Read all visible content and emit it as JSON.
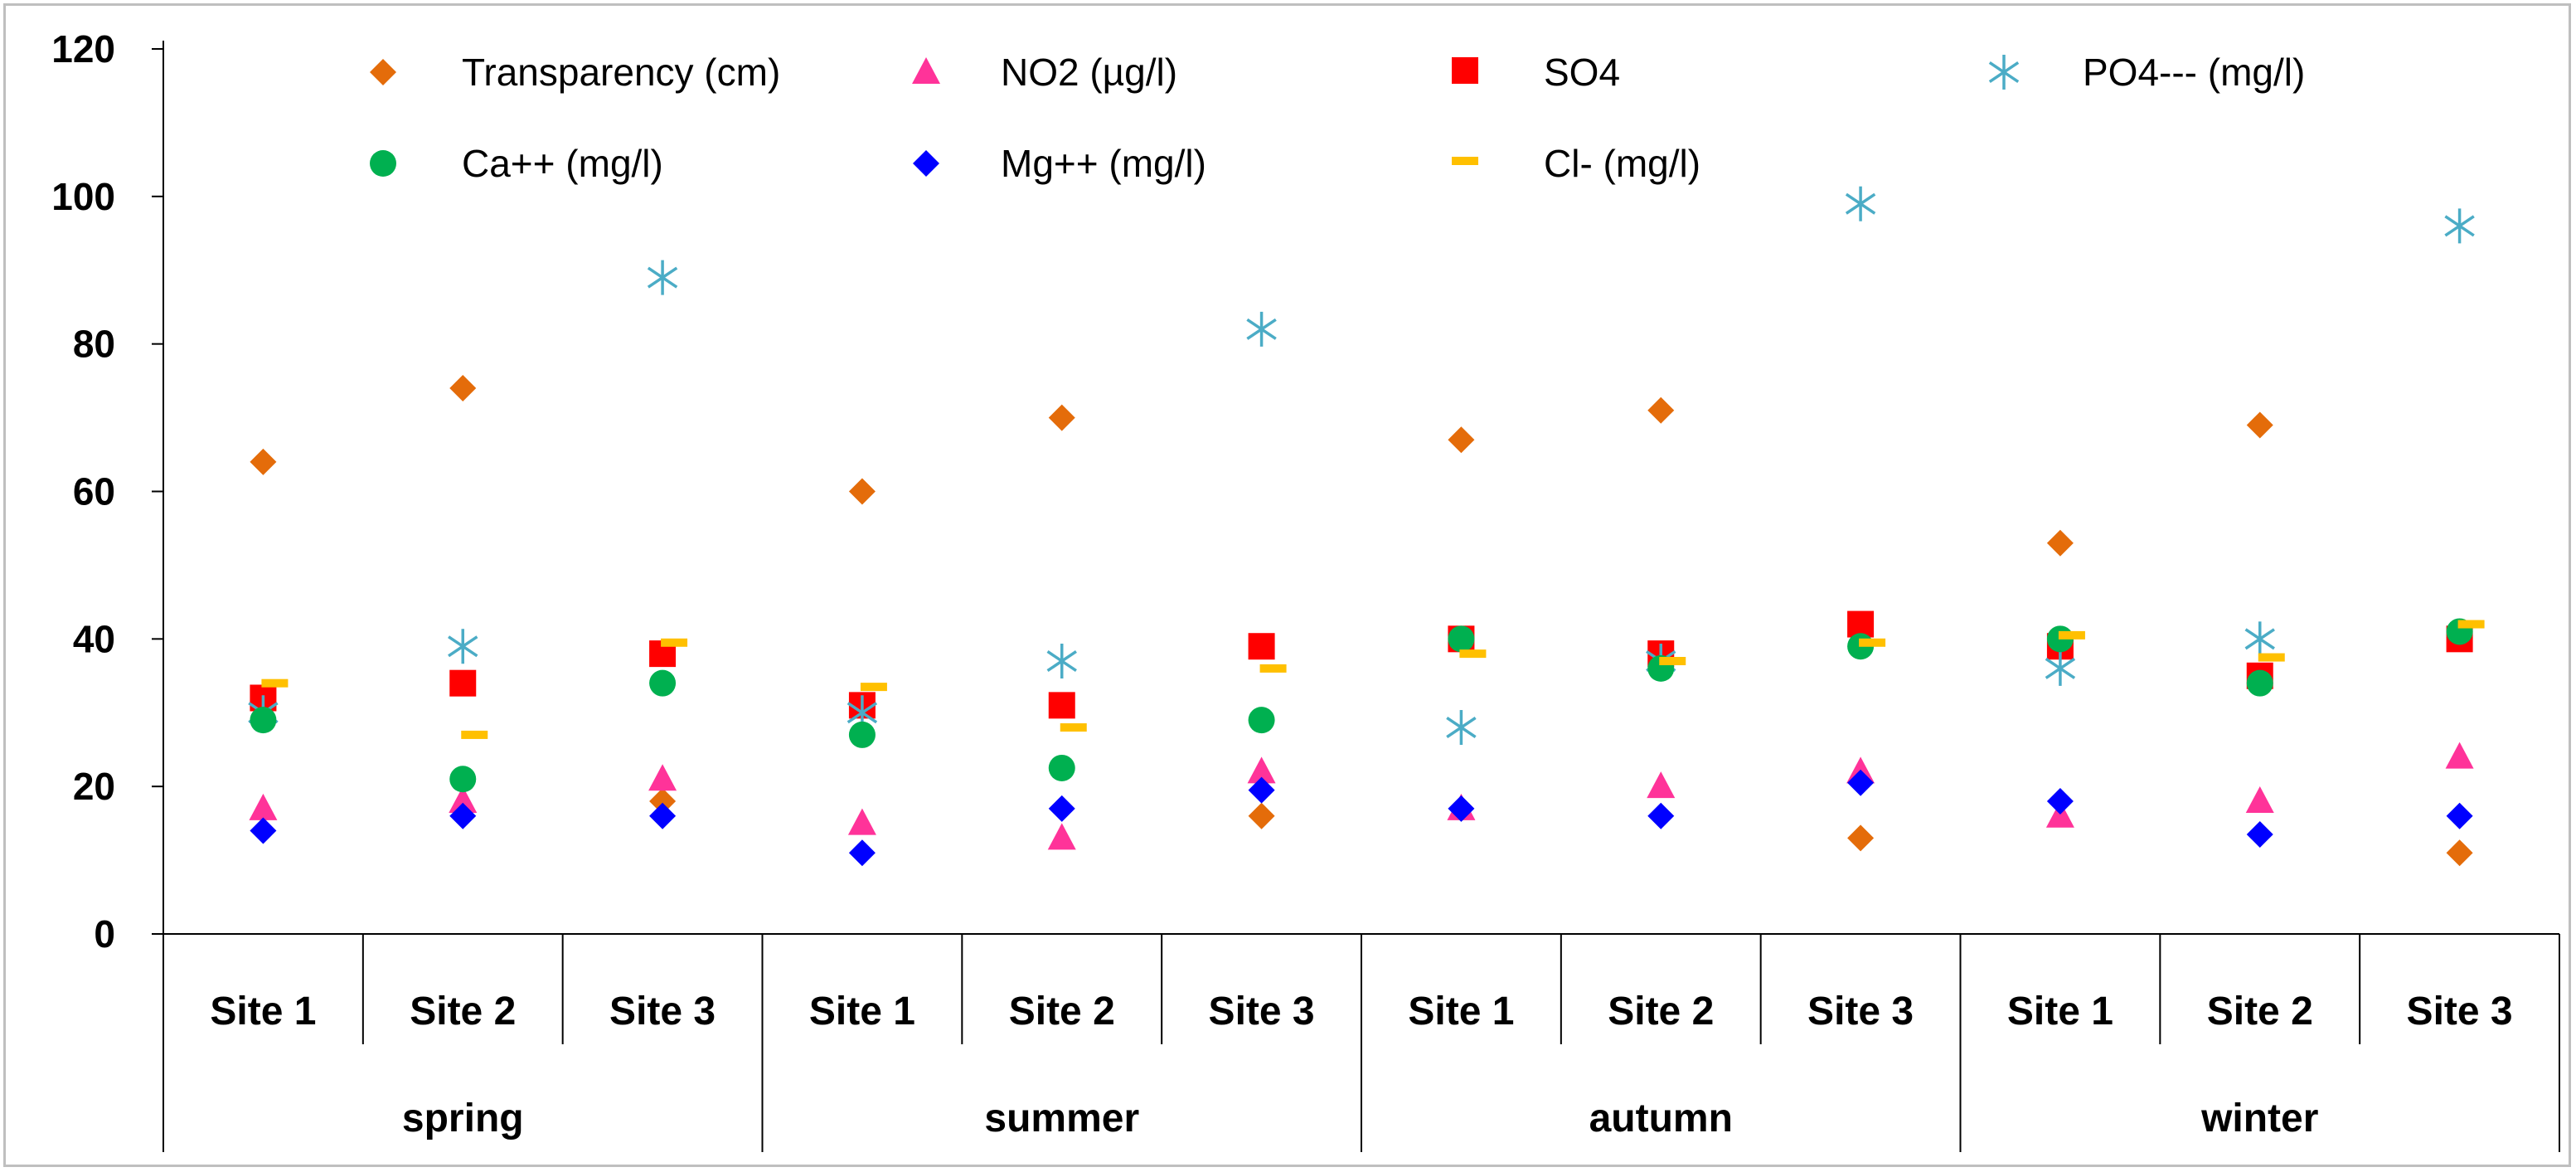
{
  "chart_data": {
    "type": "scatter",
    "title": "",
    "xlabel": "",
    "ylabel": "",
    "ylim": [
      0,
      120
    ],
    "y_ticks": [
      "0",
      "20",
      "40",
      "60",
      "80",
      "100",
      "120"
    ],
    "categories": [
      "Site 1",
      "Site 2",
      "Site 3",
      "Site 1",
      "Site 2",
      "Site 3",
      "Site 1",
      "Site 2",
      "Site 3",
      "Site 1",
      "Site 2",
      "Site 3"
    ],
    "groups": [
      {
        "name": "spring",
        "span": 3
      },
      {
        "name": "summer",
        "span": 3
      },
      {
        "name": "autumn",
        "span": 3
      },
      {
        "name": "winter",
        "span": 3
      }
    ],
    "legend_position": "top",
    "series": [
      {
        "name": "Transparency (cm)",
        "marker": "diamond",
        "color": "#E46C0A",
        "values": [
          64,
          74,
          18,
          60,
          70,
          16,
          67,
          71,
          13,
          53,
          69,
          11
        ]
      },
      {
        "name": "NO2 (µg/l)",
        "marker": "triangle",
        "color": "#FF3399",
        "values": [
          17,
          18,
          21,
          15,
          13,
          22,
          17,
          20,
          22,
          16,
          18,
          24
        ]
      },
      {
        "name": "SO4",
        "marker": "square",
        "color": "#FF0000",
        "values": [
          32,
          34,
          38,
          31,
          31,
          39,
          40,
          38,
          42,
          39,
          35,
          40
        ]
      },
      {
        "name": "PO4--- (mg/l)",
        "marker": "asterisk",
        "color": "#4BACC6",
        "values": [
          30,
          39,
          89,
          30,
          37,
          82,
          28,
          37,
          99,
          36,
          40,
          96
        ]
      },
      {
        "name": "Ca++ (mg/l)",
        "marker": "circle",
        "color": "#00B050",
        "values": [
          29,
          21,
          34,
          27,
          22.5,
          29,
          40,
          36,
          39,
          40,
          34,
          41
        ]
      },
      {
        "name": "Mg++ (mg/l)",
        "marker": "diamond",
        "color": "#0000FF",
        "values": [
          14,
          16,
          16,
          11,
          17,
          19.5,
          17,
          16,
          20.5,
          18,
          13.5,
          16
        ]
      },
      {
        "name": "Cl- (mg/l)",
        "marker": "dash",
        "color": "#FFC000",
        "values": [
          34,
          27,
          39.5,
          33.5,
          28,
          36,
          38,
          37,
          39.5,
          40.5,
          37.5,
          42
        ]
      }
    ]
  }
}
